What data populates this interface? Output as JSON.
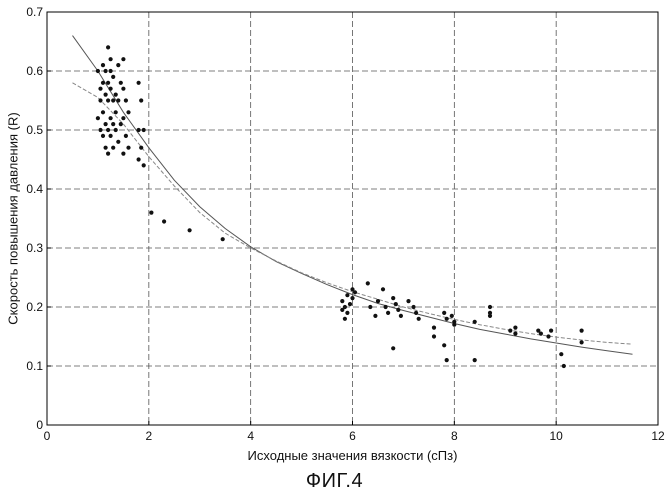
{
  "figure_caption": "ФИГ.4",
  "chart_data": {
    "type": "scatter",
    "title": "",
    "xlabel": "Исходные значения вязкости (сПз)",
    "ylabel": "Скорость повышения давления (R)",
    "xlim": [
      0,
      12
    ],
    "ylim": [
      0,
      0.7
    ],
    "x_ticks": [
      0,
      2,
      4,
      6,
      8,
      10,
      12
    ],
    "y_ticks": [
      0,
      0.1,
      0.2,
      0.3,
      0.4,
      0.5,
      0.6,
      0.7
    ],
    "x_tick_labels": [
      "0",
      "2",
      "4",
      "6",
      "8",
      "10",
      "12"
    ],
    "y_tick_labels": [
      "0",
      "0.1",
      "0.2",
      "0.3",
      "0.4",
      "0.5",
      "0.6",
      "0.7"
    ],
    "grid": true,
    "legend": "none",
    "series": [
      {
        "type": "scatter",
        "color": "#111111",
        "x": [
          1.0,
          1.0,
          1.05,
          1.05,
          1.05,
          1.1,
          1.1,
          1.1,
          1.1,
          1.15,
          1.15,
          1.15,
          1.15,
          1.2,
          1.2,
          1.2,
          1.2,
          1.2,
          1.25,
          1.25,
          1.25,
          1.25,
          1.25,
          1.3,
          1.3,
          1.3,
          1.3,
          1.35,
          1.35,
          1.35,
          1.4,
          1.4,
          1.4,
          1.45,
          1.45,
          1.5,
          1.5,
          1.5,
          1.5,
          1.55,
          1.55,
          1.6,
          1.6,
          1.8,
          1.8,
          1.8,
          1.85,
          1.85,
          1.9,
          1.9,
          2.05,
          2.3,
          2.8,
          3.45,
          5.8,
          5.8,
          5.85,
          5.85,
          5.9,
          5.9,
          5.95,
          6.0,
          6.0,
          6.05,
          6.3,
          6.35,
          6.45,
          6.5,
          6.6,
          6.65,
          6.7,
          6.8,
          6.8,
          6.85,
          6.9,
          6.95,
          7.1,
          7.2,
          7.25,
          7.3,
          7.6,
          7.6,
          7.8,
          7.8,
          7.85,
          7.85,
          7.95,
          8.0,
          8.0,
          8.4,
          8.4,
          8.7,
          8.7,
          8.7,
          9.1,
          9.2,
          9.2,
          9.65,
          9.7,
          9.85,
          9.9,
          10.1,
          10.15,
          10.5,
          10.5
        ],
        "y": [
          0.6,
          0.52,
          0.57,
          0.5,
          0.55,
          0.61,
          0.53,
          0.58,
          0.49,
          0.56,
          0.51,
          0.6,
          0.47,
          0.64,
          0.55,
          0.5,
          0.58,
          0.46,
          0.62,
          0.57,
          0.52,
          0.49,
          0.6,
          0.55,
          0.51,
          0.59,
          0.47,
          0.56,
          0.5,
          0.53,
          0.61,
          0.55,
          0.48,
          0.58,
          0.51,
          0.62,
          0.57,
          0.52,
          0.46,
          0.55,
          0.49,
          0.53,
          0.47,
          0.58,
          0.5,
          0.45,
          0.55,
          0.47,
          0.5,
          0.44,
          0.36,
          0.345,
          0.33,
          0.315,
          0.21,
          0.195,
          0.2,
          0.18,
          0.22,
          0.19,
          0.205,
          0.23,
          0.215,
          0.225,
          0.24,
          0.2,
          0.185,
          0.21,
          0.23,
          0.2,
          0.19,
          0.215,
          0.13,
          0.205,
          0.195,
          0.185,
          0.21,
          0.2,
          0.19,
          0.18,
          0.165,
          0.15,
          0.19,
          0.135,
          0.18,
          0.11,
          0.185,
          0.175,
          0.17,
          0.175,
          0.11,
          0.2,
          0.185,
          0.19,
          0.16,
          0.165,
          0.155,
          0.16,
          0.155,
          0.15,
          0.16,
          0.12,
          0.1,
          0.16,
          0.14
        ]
      },
      {
        "type": "line",
        "style": "solid",
        "color": "#555555",
        "x": [
          0.5,
          1.0,
          1.5,
          2.0,
          2.5,
          3.0,
          3.5,
          4.0,
          4.5,
          5.0,
          5.5,
          6.0,
          6.5,
          7.0,
          7.5,
          8.0,
          8.5,
          9.0,
          9.5,
          10.0,
          10.5,
          11.0,
          11.5
        ],
        "y": [
          0.66,
          0.6,
          0.53,
          0.47,
          0.415,
          0.37,
          0.333,
          0.302,
          0.277,
          0.257,
          0.238,
          0.221,
          0.206,
          0.194,
          0.183,
          0.172,
          0.162,
          0.154,
          0.146,
          0.139,
          0.132,
          0.126,
          0.12
        ]
      },
      {
        "type": "line",
        "style": "dashed",
        "color": "#888888",
        "x": [
          0.5,
          1.0,
          1.5,
          2.0,
          2.5,
          3.0,
          3.5,
          4.0,
          4.5,
          5.0,
          5.5,
          6.0,
          6.5,
          7.0,
          7.5,
          8.0,
          8.5,
          9.0,
          9.5,
          10.0,
          10.5,
          11.0,
          11.5
        ],
        "y": [
          0.58,
          0.555,
          0.51,
          0.455,
          0.405,
          0.36,
          0.325,
          0.3,
          0.278,
          0.258,
          0.241,
          0.226,
          0.213,
          0.2,
          0.189,
          0.179,
          0.17,
          0.162,
          0.155,
          0.149,
          0.144,
          0.14,
          0.137
        ]
      }
    ]
  }
}
